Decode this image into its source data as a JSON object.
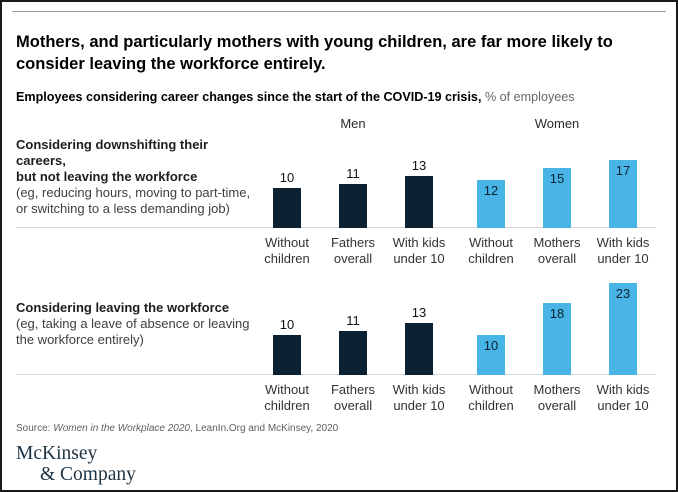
{
  "header": {
    "title": "Mothers, and particularly mothers with young children, are far more likely to consider leaving the workforce entirely.",
    "subtitle_bold": "Employees considering career changes since the start of the COVID-19 crisis,",
    "subtitle_unit": " % of employees"
  },
  "chart_data": {
    "type": "bar",
    "unit": "% of employees",
    "ylim": [
      0,
      25
    ],
    "legend_position": "none",
    "grid": false,
    "groups": [
      {
        "name": "Men",
        "color": "#0c2232",
        "categories": [
          "Without\nchildren",
          "Fathers\noverall",
          "With kids\nunder 10"
        ]
      },
      {
        "name": "Women",
        "color": "#49b5e7",
        "categories": [
          "Without\nchildren",
          "Mothers\noverall",
          "With kids\nunder 10"
        ]
      }
    ],
    "rows": [
      {
        "label_bold": "Considering downshifting their careers,\nbut not leaving the workforce",
        "label_note": "(eg, reducing hours, moving to part-time,\nor switching to a less demanding job)",
        "men": [
          10,
          11,
          13
        ],
        "women": [
          12,
          15,
          17
        ]
      },
      {
        "label_bold": "Considering leaving the workforce",
        "label_note": "(eg, taking a leave of absence or leaving\nthe workforce entirely)",
        "men": [
          10,
          11,
          13
        ],
        "women": [
          10,
          18,
          23
        ]
      }
    ]
  },
  "source": {
    "prefix": "Source: ",
    "italic": "Women in the Workplace 2020",
    "rest": ", LeanIn.Org and McKinsey, 2020"
  },
  "logo": {
    "line1": "McKinsey",
    "line2": "& Company"
  },
  "colors": {
    "dark_navy": "#0c2232",
    "light_blue": "#49b5e7",
    "baseline_gray": "#d8d8d8"
  }
}
